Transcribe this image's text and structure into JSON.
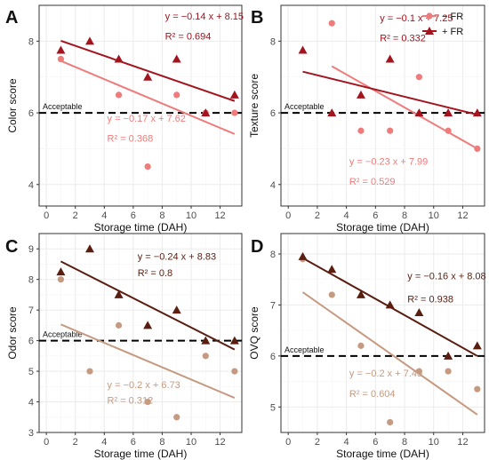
{
  "chart_data": [
    {
      "type": "scatter",
      "panel_label": "A",
      "xlabel": "Storage time (DAH)",
      "ylabel": "Color score",
      "xlim": [
        -0.5,
        13.5
      ],
      "ylim": [
        3.4,
        9.0
      ],
      "xticks": [
        "0",
        "2",
        "4",
        "6",
        "8",
        "10",
        "12"
      ],
      "yticks": [
        "4",
        "6",
        "8"
      ],
      "threshold": {
        "y": 6,
        "label": "Acceptable"
      },
      "series": [
        {
          "color": "#f07b7b",
          "marker": "circle",
          "x": [
            1,
            5,
            7,
            9,
            11,
            13
          ],
          "y": [
            7.5,
            6.5,
            4.5,
            6.5,
            6,
            6
          ],
          "fit": {
            "slope": -0.17,
            "intercept": 7.62,
            "eq": "y = −0.17 x + 7.62",
            "r2": "R² = 0.368",
            "label_x": 4.2,
            "label_y": [
              5.75,
              5.2
            ]
          }
        },
        {
          "color": "#a3141e",
          "marker": "triangle",
          "x": [
            1,
            3,
            5,
            7,
            9,
            11,
            13
          ],
          "y": [
            7.75,
            8,
            7.5,
            7,
            7.5,
            6,
            6.5
          ],
          "fit": {
            "slope": -0.14,
            "intercept": 8.15,
            "eq": "y = −0.14 x + 8.15",
            "r2": "R² = 0.694",
            "label_x": 8.2,
            "label_y": [
              8.6,
              8.05
            ]
          }
        }
      ]
    },
    {
      "type": "scatter",
      "panel_label": "B",
      "xlabel": "Storage time (DAH)",
      "ylabel": "Texture score",
      "xlim": [
        -0.5,
        13.5
      ],
      "ylim": [
        3.4,
        9.0
      ],
      "xticks": [
        "0",
        "2",
        "4",
        "6",
        "8",
        "10",
        "12"
      ],
      "yticks": [
        "4",
        "6",
        "8"
      ],
      "threshold": {
        "y": 6,
        "label": "Acceptable"
      },
      "legend": {
        "position": "top-right",
        "entries": [
          {
            "label": "− FR",
            "color": "#f07b7b",
            "marker": "circle"
          },
          {
            "label": "+ FR",
            "color": "#a3141e",
            "marker": "triangle"
          }
        ]
      },
      "series": [
        {
          "color": "#f07b7b",
          "marker": "circle",
          "x": [
            3,
            5,
            7,
            9,
            11,
            13
          ],
          "y": [
            8.5,
            5.5,
            5.5,
            7,
            5.5,
            5
          ],
          "fit": {
            "slope": -0.23,
            "intercept": 7.99,
            "eq": "y = −0.23 x + 7.99",
            "r2": "R² = 0.529",
            "label_x": 4.2,
            "label_y": [
              4.55,
              4.0
            ]
          }
        },
        {
          "color": "#a3141e",
          "marker": "triangle",
          "x": [
            1,
            3,
            5,
            7,
            9,
            11,
            13
          ],
          "y": [
            7.75,
            6,
            6.5,
            7.5,
            6,
            6,
            6
          ],
          "fit": {
            "slope": -0.1,
            "intercept": 7.25,
            "eq": "y = −0.1 x + 7.25",
            "r2": "R² = 0.332",
            "label_x": 6.3,
            "label_y": [
              8.55,
              8.0
            ]
          }
        }
      ]
    },
    {
      "type": "scatter",
      "panel_label": "C",
      "xlabel": "Storage time (DAH)",
      "ylabel": "Odor score",
      "xlim": [
        -0.5,
        13.5
      ],
      "ylim": [
        3.0,
        9.5
      ],
      "xticks": [
        "0",
        "2",
        "4",
        "6",
        "8",
        "10",
        "12"
      ],
      "yticks": [
        "3",
        "4",
        "5",
        "6",
        "7",
        "8",
        "9"
      ],
      "threshold": {
        "y": 6,
        "label": "Acceptable"
      },
      "series": [
        {
          "color": "#c59a80",
          "marker": "circle",
          "x": [
            1,
            3,
            5,
            7,
            9,
            11,
            13
          ],
          "y": [
            8,
            5,
            6.5,
            4,
            3.5,
            5.5,
            5
          ],
          "fit": {
            "slope": -0.2,
            "intercept": 6.73,
            "eq": "y = −0.2 x + 6.73",
            "r2": "R² = 0.312",
            "label_x": 4.2,
            "label_y": [
              4.45,
              3.95
            ]
          }
        },
        {
          "color": "#5a1e10",
          "marker": "triangle",
          "x": [
            1,
            3,
            5,
            7,
            9,
            11,
            13
          ],
          "y": [
            8.25,
            9,
            7.5,
            6.5,
            7,
            6,
            6
          ],
          "fit": {
            "slope": -0.24,
            "intercept": 8.83,
            "eq": "y = −0.24 x + 8.83",
            "r2": "R² = 0.8",
            "label_x": 6.3,
            "label_y": [
              8.65,
              8.1
            ]
          }
        }
      ]
    },
    {
      "type": "scatter",
      "panel_label": "D",
      "xlabel": "Storage time (DAH)",
      "ylabel": "OVQ score",
      "xlim": [
        -0.5,
        13.5
      ],
      "ylim": [
        4.5,
        8.4
      ],
      "xticks": [
        "0",
        "2",
        "4",
        "6",
        "8",
        "10",
        "12"
      ],
      "yticks": [
        "5",
        "6",
        "7",
        "8"
      ],
      "threshold": {
        "y": 6,
        "label": "Acceptable"
      },
      "series": [
        {
          "color": "#c59a80",
          "marker": "circle",
          "x": [
            1,
            3,
            5,
            7,
            9,
            11,
            13
          ],
          "y": [
            7.9,
            7.2,
            6.2,
            4.7,
            5.7,
            5.7,
            5.35
          ],
          "fit": {
            "slope": -0.2,
            "intercept": 7.45,
            "eq": "y = −0.2 x + 7.45",
            "r2": "R² = 0.604",
            "label_x": 4.2,
            "label_y": [
              5.6,
              5.2
            ]
          }
        },
        {
          "color": "#5a1e10",
          "marker": "triangle",
          "x": [
            1,
            3,
            5,
            7,
            9,
            11,
            13
          ],
          "y": [
            7.95,
            7.7,
            7.2,
            7,
            6.85,
            6,
            6.2
          ],
          "fit": {
            "slope": -0.16,
            "intercept": 8.08,
            "eq": "y = −0.16 x + 8.08",
            "r2": "R² = 0.938",
            "label_x": 8.2,
            "label_y": [
              7.5,
              7.05
            ]
          }
        }
      ]
    }
  ]
}
